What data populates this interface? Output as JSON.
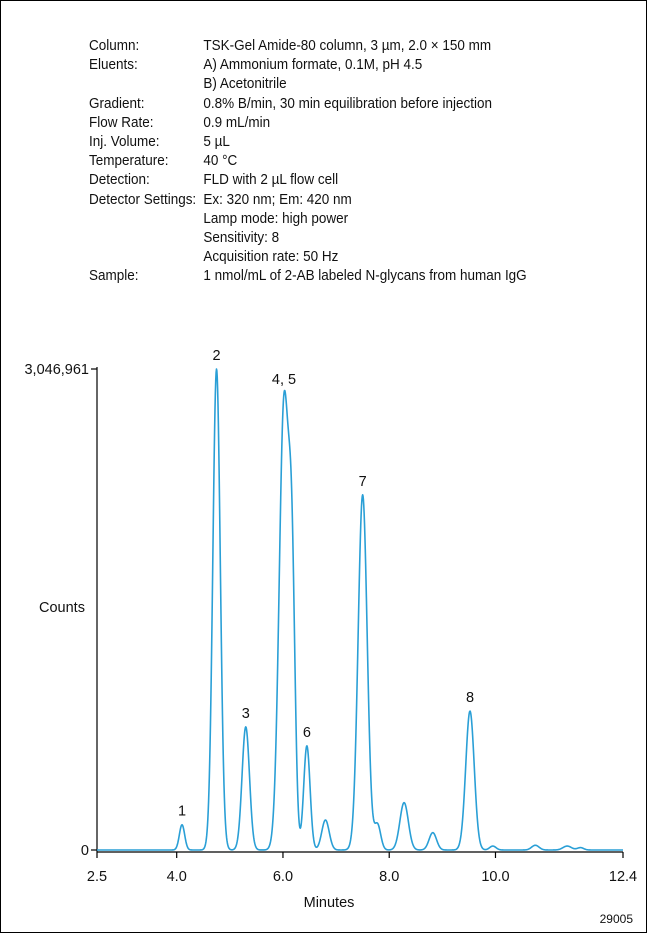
{
  "conditions": [
    {
      "label": "Column:",
      "values": [
        "TSK-Gel Amide-80 column, 3 µm, 2.0 × 150 mm"
      ]
    },
    {
      "label": "Eluents:",
      "values": [
        "A) Ammonium formate, 0.1M, pH 4.5",
        "B) Acetonitrile"
      ]
    },
    {
      "label": "Gradient:",
      "values": [
        "0.8% B/min, 30 min equilibration before injection"
      ]
    },
    {
      "label": "Flow Rate:",
      "values": [
        "0.9 mL/min"
      ]
    },
    {
      "label": "Inj. Volume:",
      "values": [
        "5 µL"
      ]
    },
    {
      "label": "Temperature:",
      "values": [
        "40 °C"
      ]
    },
    {
      "label": "Detection:",
      "values": [
        "FLD with 2 µL flow cell"
      ]
    },
    {
      "label": "Detector Settings:",
      "values": [
        "Ex: 320 nm; Em: 420 nm",
        "Lamp mode: high power",
        "Sensitivity: 8",
        "Acquisition rate: 50 Hz"
      ]
    },
    {
      "label": "Sample:",
      "values": [
        "1 nmol/mL of 2-AB labeled N-glycans from human IgG"
      ]
    }
  ],
  "chart_data": {
    "type": "line",
    "title": "",
    "xlabel": "Minutes",
    "ylabel": "Counts",
    "xlim": [
      2.5,
      12.4
    ],
    "ylim": [
      0,
      3046961
    ],
    "x_ticks": [
      "2.5",
      "4.0",
      "6.0",
      "8.0",
      "10.0",
      "12.4"
    ],
    "y_ticks": [
      "0",
      "3,046,961"
    ],
    "line_color": "#2a9fd6",
    "peaks": [
      {
        "label": "1",
        "x": 4.1,
        "y": 160000
      },
      {
        "label": "2",
        "x": 4.75,
        "y": 3046961
      },
      {
        "label": "3",
        "x": 5.3,
        "y": 780000
      },
      {
        "label": "4, 5",
        "x": 6.02,
        "y": 2830000
      },
      {
        "label": "6",
        "x": 6.45,
        "y": 660000
      },
      {
        "label": "7",
        "x": 7.5,
        "y": 2250000
      },
      {
        "label": "8",
        "x": 9.52,
        "y": 880000
      }
    ],
    "minor_peaks": [
      {
        "x": 6.17,
        "y": 1500000,
        "w": 0.06
      },
      {
        "x": 6.8,
        "y": 190000,
        "w": 0.07
      },
      {
        "x": 7.78,
        "y": 160000,
        "w": 0.06
      },
      {
        "x": 8.28,
        "y": 300000,
        "w": 0.08
      },
      {
        "x": 8.82,
        "y": 110000,
        "w": 0.07
      },
      {
        "x": 9.95,
        "y": 25000,
        "w": 0.06
      },
      {
        "x": 10.75,
        "y": 30000,
        "w": 0.07
      },
      {
        "x": 11.35,
        "y": 25000,
        "w": 0.08
      },
      {
        "x": 11.6,
        "y": 15000,
        "w": 0.06
      }
    ],
    "footnote": "29005"
  }
}
